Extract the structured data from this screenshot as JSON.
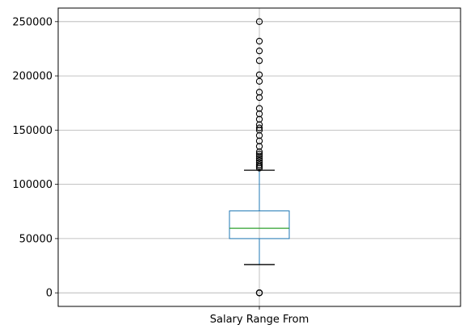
{
  "chart_data": {
    "type": "box",
    "title": "",
    "xlabel": "",
    "ylabel": "",
    "categories": [
      "Salary Range From"
    ],
    "ylim": [
      -12500,
      262500
    ],
    "yticks": [
      0,
      50000,
      100000,
      150000,
      200000,
      250000
    ],
    "ytick_labels": [
      "0",
      "50000",
      "100000",
      "150000",
      "200000",
      "250000"
    ],
    "grid": true,
    "boxes": [
      {
        "name": "Salary Range From",
        "whisker_low": 26000,
        "q1": 50000,
        "median": 59500,
        "q3": 75500,
        "whisker_high": 113000,
        "outliers": [
          0,
          0,
          0,
          0,
          115000,
          116500,
          118000,
          120000,
          122000,
          124000,
          126000,
          128000,
          130000,
          135000,
          140000,
          145000,
          150000,
          152000,
          155000,
          160000,
          165000,
          170000,
          180000,
          185000,
          195000,
          201000,
          214000,
          223000,
          232000,
          250000
        ]
      }
    ],
    "colors": {
      "box": "#1f77b4",
      "median": "#2ca02c",
      "whisker": "#1f77b4",
      "cap": "#000000",
      "outlier": "#000000",
      "grid": "#b0b0b0"
    }
  }
}
